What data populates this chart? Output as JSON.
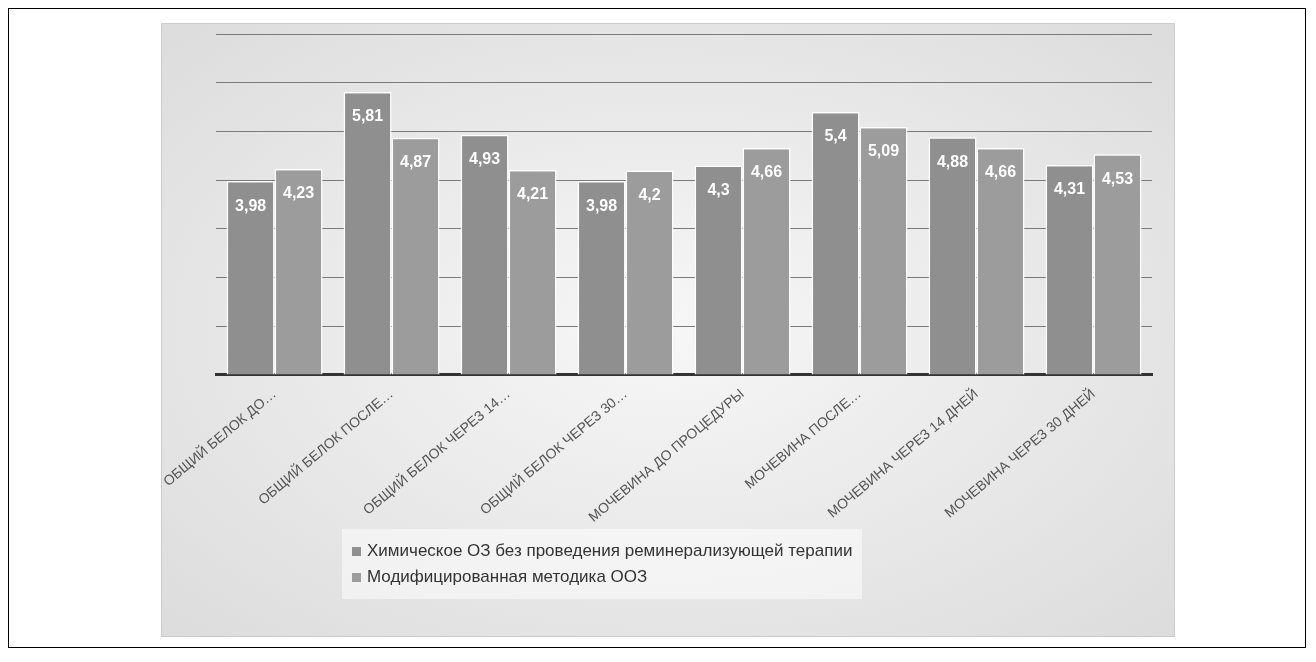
{
  "chart_data": {
    "type": "bar",
    "categories": [
      "ОБЩИЙ БЕЛОК ДО…",
      "ОБЩИЙ БЕЛОК ПОСЛЕ…",
      "ОБЩИЙ БЕЛОК ЧЕРЕЗ 14…",
      "ОБЩИЙ БЕЛОК ЧЕРЕЗ 30…",
      "МОЧЕВИНА ДО ПРОЦЕДУРЫ",
      "МОЧЕВИНА ПОСЛЕ…",
      "МОЧЕВИНА ЧЕРЕЗ 14 ДНЕЙ",
      "МОЧЕВИНА ЧЕРЕЗ 30 ДНЕЙ"
    ],
    "series": [
      {
        "name": "Химическое ОЗ без проведения реминерализующей терапии",
        "color": "#8f8f8f",
        "values": [
          3.98,
          5.81,
          4.93,
          3.98,
          4.3,
          5.4,
          4.88,
          4.31
        ],
        "value_labels": [
          "3,98",
          "5,81",
          "4,93",
          "3,98",
          "4,3",
          "5,4",
          "4,88",
          "4,31"
        ]
      },
      {
        "name": "Модифицированная методика ООЗ",
        "color": "#9c9c9c",
        "values": [
          4.23,
          4.87,
          4.21,
          4.2,
          4.66,
          5.09,
          4.66,
          4.53
        ],
        "value_labels": [
          "4,23",
          "4,87",
          "4,21",
          "4,2",
          "4,66",
          "5,09",
          "4,66",
          "4,53"
        ]
      }
    ],
    "ylim": [
      0,
      7
    ],
    "yticks": [
      {
        "value": 0,
        "label": null
      },
      {
        "value": 1,
        "label": null
      },
      {
        "value": 2,
        "label": null
      },
      {
        "value": 3,
        "label": null
      },
      {
        "value": 4,
        "label": null
      },
      {
        "value": 5,
        "label": null
      },
      {
        "value": 6,
        "label": null
      },
      {
        "value": 7,
        "label": null
      }
    ],
    "grid": "y",
    "legend": "bottom",
    "tick_labels": "x"
  }
}
